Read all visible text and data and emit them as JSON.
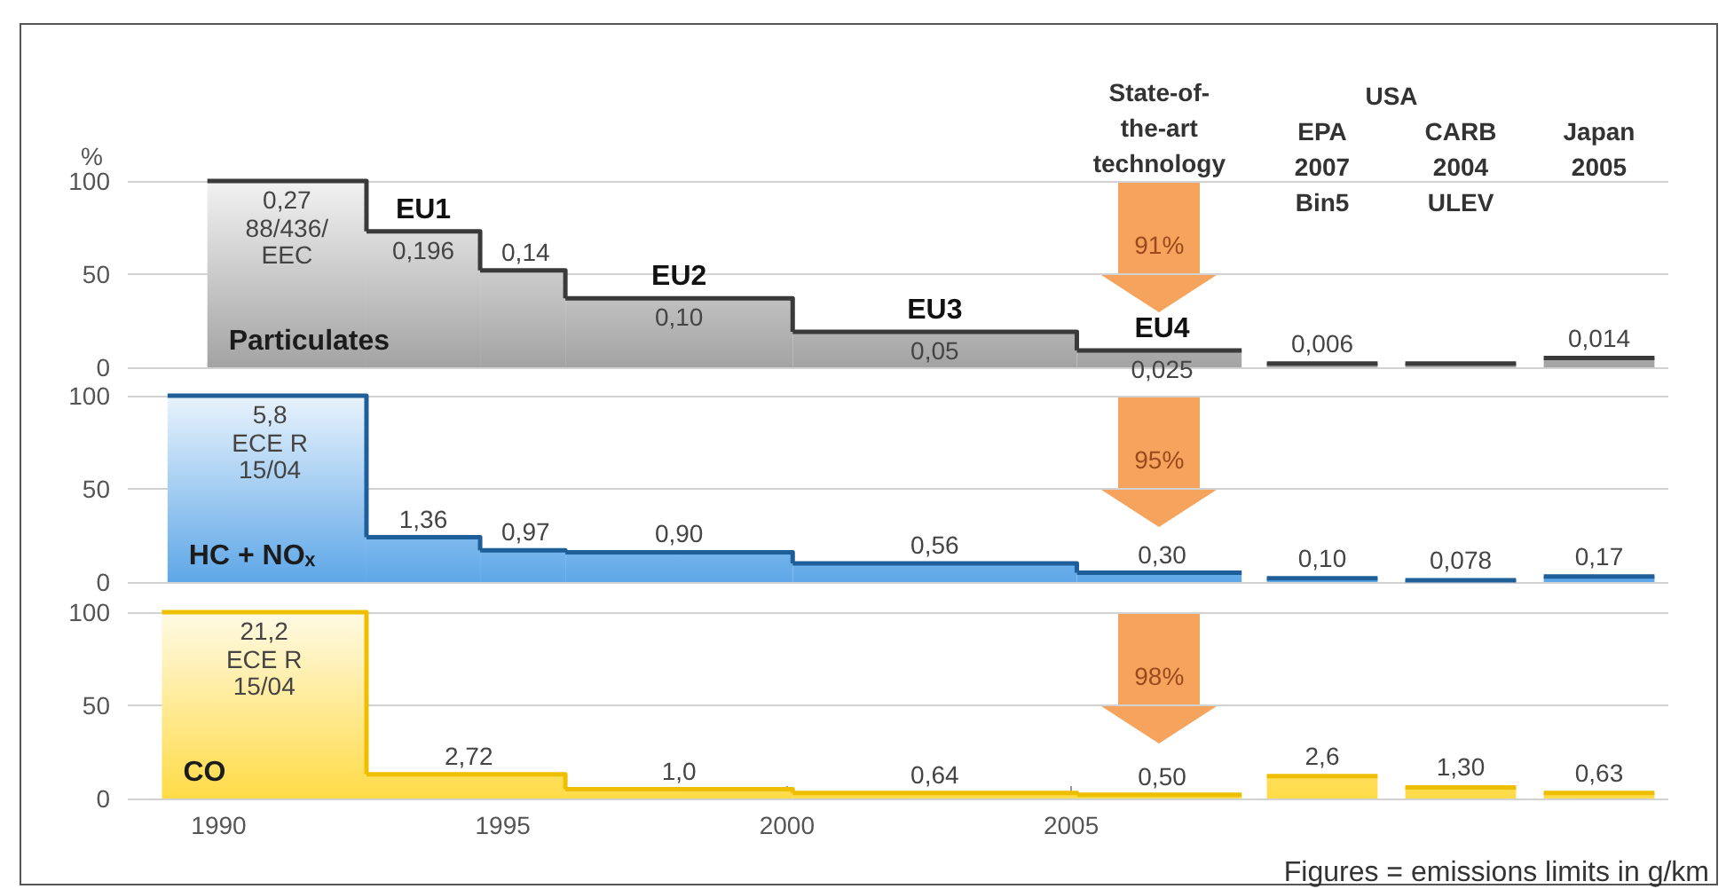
{
  "chart_data": [
    {
      "type": "histogram",
      "title": "Particulates",
      "ylabel": "%",
      "bins": [
        1989.8,
        1992.6,
        1994.6,
        1996.1,
        2000.1,
        2005.1,
        2008.0
      ],
      "values": [
        100,
        73,
        52,
        37,
        19,
        9
      ],
      "color": "#3a3a3a",
      "xlim": [
        1988.4,
        2008.2
      ],
      "ylim": [
        0,
        100
      ],
      "yticks": [
        0,
        50,
        100
      ],
      "grid": "y",
      "tick_labels": "y",
      "annotations": [
        "State-of-\nthe-art\ntechnology",
        {
          "text": "0,27",
          "x": 1991.2,
          "y": 100
        },
        {
          "text": "88/436/\nEEC",
          "x": 1991.2,
          "y": 100
        },
        {
          "text": "EU1",
          "x": 1993.6,
          "y": 73
        },
        {
          "text": "0,196",
          "x": 1993.6,
          "y": 73
        },
        {
          "text": "0,14",
          "x": 1995.4,
          "y": 52
        },
        {
          "text": "EU2",
          "x": 1998.1,
          "y": 37
        },
        {
          "text": "0,10",
          "x": 1998.1,
          "y": 37
        },
        {
          "text": "EU3",
          "x": 2002.6,
          "y": 19
        },
        {
          "text": "0,05",
          "x": 2002.6,
          "y": 19
        },
        {
          "text": "EU4",
          "x": 2006.6,
          "y": 9
        },
        {
          "text": "0,025",
          "x": 2006.6,
          "y": 9
        },
        "91%"
      ]
    },
    {
      "type": "bar",
      "categories": [
        "EPA\n2007\nBin5",
        "CARB\n2004\nULEV",
        "Japan\n2005"
      ],
      "values": [
        2,
        2,
        5
      ],
      "color": "#3a3a3a",
      "ylim": [
        0,
        100
      ],
      "yticks": [
        0,
        50,
        100
      ],
      "grid": "y",
      "tick_labels": "x",
      "annotations": [
        {
          "text": "0,006",
          "x": "EPA\n2007\nBin5",
          "y": 2
        },
        {
          "text": "0,014",
          "x": "Japan\n2005",
          "y": 5
        },
        "USA"
      ]
    },
    {
      "type": "histogram",
      "title": "HC + NOₓ",
      "bins": [
        1989.1,
        1992.6,
        1994.6,
        1996.1,
        2000.1,
        2005.1,
        2008.0
      ],
      "values": [
        100,
        24,
        17,
        16,
        10,
        5
      ],
      "color": "#1f5f99",
      "xlim": [
        1988.4,
        2008.2
      ],
      "ylim": [
        0,
        100
      ],
      "yticks": [
        0,
        50,
        100
      ],
      "grid": "y",
      "tick_labels": "y",
      "annotations": [
        {
          "text": "5,8",
          "x": 1990.9,
          "y": 100
        },
        {
          "text": "ECE R\n15/04",
          "x": 1990.9,
          "y": 100
        },
        {
          "text": "1,36",
          "x": 1993.6,
          "y": 24
        },
        {
          "text": "0,97",
          "x": 1995.4,
          "y": 17
        },
        {
          "text": "0,90",
          "x": 1998.1,
          "y": 16
        },
        {
          "text": "0,56",
          "x": 2002.6,
          "y": 10
        },
        {
          "text": "0,30",
          "x": 2006.6,
          "y": 5
        },
        "95%"
      ]
    },
    {
      "type": "bar",
      "categories": [
        "EPA\n2007\nBin5",
        "CARB\n2004\nULEV",
        "Japan\n2005"
      ],
      "values": [
        2,
        1,
        3
      ],
      "color": "#1f5f99",
      "ylim": [
        0,
        100
      ],
      "yticks": [
        0,
        50,
        100
      ],
      "grid": "y",
      "tick_labels": false,
      "annotations": [
        {
          "text": "0,10",
          "x": "EPA\n2007\nBin5",
          "y": 2
        },
        {
          "text": "0,078",
          "x": "CARB\n2004\nULEV",
          "y": 1
        },
        {
          "text": "0,17",
          "x": "Japan\n2005",
          "y": 3
        }
      ]
    },
    {
      "type": "histogram",
      "title": "CO",
      "bins": [
        1989.0,
        1992.6,
        1996.1,
        2000.1,
        2005.1,
        2008.0
      ],
      "values": [
        100,
        13,
        5,
        3,
        2
      ],
      "color": "#eebf00",
      "xlim": [
        1988.4,
        2008.2
      ],
      "ylim": [
        0,
        100
      ],
      "xticks": [
        1990,
        1995,
        2000,
        2005
      ],
      "yticks": [
        0,
        50,
        100
      ],
      "grid": "y",
      "annotations": [
        {
          "text": "21,2",
          "x": 1990.8,
          "y": 100
        },
        {
          "text": "ECE R\n15/04",
          "x": 1990.8,
          "y": 100
        },
        {
          "text": "2,72",
          "x": 1994.4,
          "y": 13
        },
        {
          "text": "1,0",
          "x": 1998.1,
          "y": 5
        },
        {
          "text": "0,64",
          "x": 2002.6,
          "y": 3
        },
        {
          "text": "0,50",
          "x": 2006.6,
          "y": 2
        },
        "98%"
      ]
    },
    {
      "type": "bar",
      "categories": [
        "EPA\n2007\nBin5",
        "CARB\n2004\nULEV",
        "Japan\n2005"
      ],
      "values": [
        12,
        6,
        3
      ],
      "color": "#eebf00",
      "ylim": [
        0,
        100
      ],
      "yticks": [
        0,
        50,
        100
      ],
      "grid": "y",
      "tick_labels": false,
      "annotations": [
        {
          "text": "2,6",
          "x": "EPA\n2007\nBin5",
          "y": 12
        },
        {
          "text": "1,30",
          "x": "CARB\n2004\nULEV",
          "y": 6
        },
        {
          "text": "0,63",
          "x": "Japan\n2005",
          "y": 3
        },
        "Figures = emissions limits in g/km"
      ]
    }
  ]
}
